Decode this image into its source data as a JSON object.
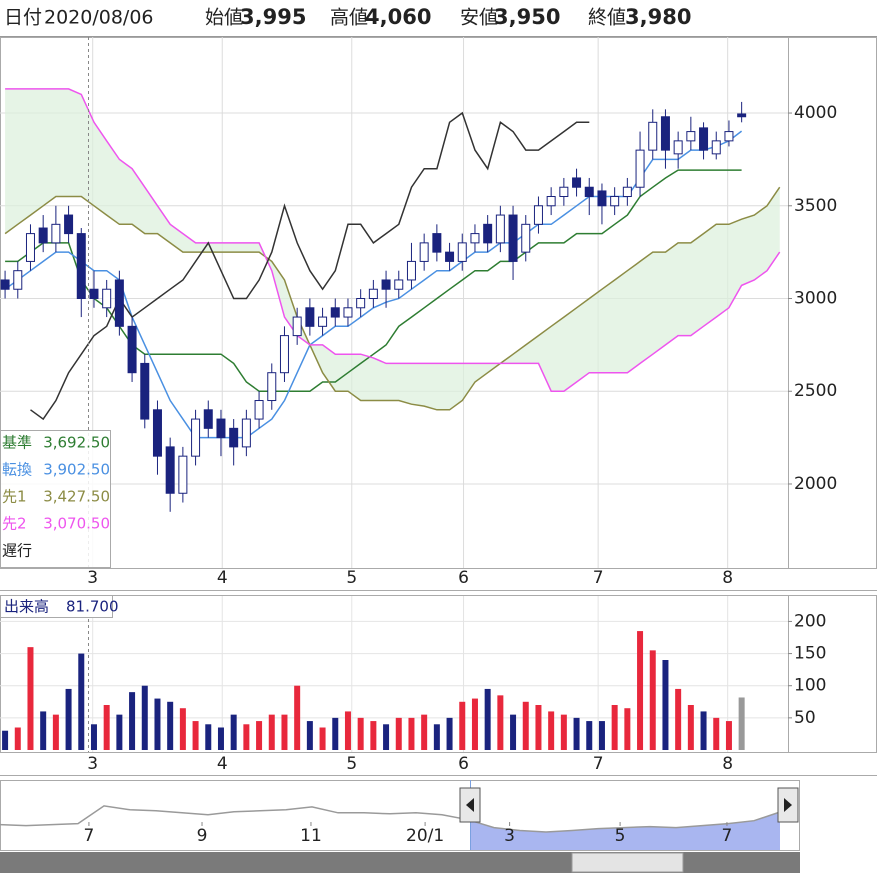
{
  "header": {
    "date_label": "日付",
    "date": "2020/08/06",
    "items": [
      {
        "label": "始値",
        "value": "3,995",
        "color": "#222222"
      },
      {
        "label": "高値",
        "value": "4,060",
        "color": "#e0202a"
      },
      {
        "label": "安値",
        "value": "3,950",
        "color": "#1a7a1a"
      },
      {
        "label": "終値",
        "value": "3,980",
        "color": "#222222"
      }
    ]
  },
  "chart_data": [
    {
      "type": "candlestick",
      "x": [
        0,
        1,
        2,
        3,
        4,
        5,
        6,
        7,
        8,
        9,
        10,
        11,
        12,
        13,
        14,
        15,
        16,
        17,
        18,
        19,
        20,
        21,
        22,
        23,
        24,
        25,
        26,
        27,
        28,
        29,
        30,
        31,
        32,
        33,
        34,
        35,
        36,
        37,
        38,
        39,
        40,
        41,
        42,
        43,
        44,
        45,
        46,
        47,
        48,
        49,
        50,
        51,
        52,
        53,
        54,
        55,
        56,
        57,
        58,
        59,
        60,
        61
      ],
      "open": [
        3100,
        3050,
        3200,
        3380,
        3300,
        3450,
        3350,
        3050,
        2950,
        3100,
        2850,
        2650,
        2400,
        2200,
        1950,
        2150,
        2400,
        2350,
        2300,
        2200,
        2350,
        2450,
        2600,
        2800,
        2950,
        2850,
        2950,
        2900,
        2950,
        3000,
        3100,
        3050,
        3100,
        3200,
        3350,
        3250,
        3200,
        3300,
        3400,
        3300,
        3450,
        3250,
        3400,
        3500,
        3550,
        3650,
        3600,
        3580,
        3500,
        3550,
        3600,
        3800,
        3980,
        3780,
        3850,
        3920,
        3780,
        3850,
        3995,
        null,
        null,
        null
      ],
      "high": [
        3150,
        3200,
        3400,
        3450,
        3500,
        3500,
        3380,
        3150,
        3100,
        3150,
        2900,
        2700,
        2450,
        2250,
        2200,
        2400,
        2450,
        2400,
        2350,
        2400,
        2500,
        2650,
        2850,
        2950,
        3000,
        2950,
        3000,
        3000,
        3050,
        3100,
        3150,
        3150,
        3300,
        3350,
        3400,
        3300,
        3350,
        3400,
        3450,
        3500,
        3500,
        3450,
        3550,
        3600,
        3650,
        3700,
        3650,
        3620,
        3600,
        3650,
        3900,
        4020,
        4020,
        3900,
        3980,
        3950,
        3900,
        3960,
        4060,
        null,
        null,
        null
      ],
      "low": [
        3000,
        3000,
        3150,
        3250,
        3250,
        3300,
        2900,
        2950,
        2900,
        2800,
        2550,
        2300,
        2050,
        1850,
        1900,
        2100,
        2250,
        2150,
        2100,
        2150,
        2300,
        2400,
        2550,
        2750,
        2800,
        2800,
        2850,
        2850,
        2900,
        2950,
        2950,
        3000,
        3050,
        3150,
        3200,
        3150,
        3150,
        3250,
        3250,
        3250,
        3100,
        3200,
        3350,
        3450,
        3500,
        3550,
        3450,
        3400,
        3450,
        3500,
        3550,
        3750,
        3700,
        3700,
        3800,
        3750,
        3750,
        3820,
        3950,
        null,
        null,
        null
      ],
      "close": [
        3050,
        3150,
        3350,
        3300,
        3400,
        3350,
        3000,
        3000,
        3050,
        2850,
        2600,
        2350,
        2150,
        1950,
        2150,
        2350,
        2300,
        2250,
        2200,
        2350,
        2450,
        2600,
        2800,
        2900,
        2850,
        2900,
        2900,
        2950,
        3000,
        3050,
        3050,
        3100,
        3200,
        3300,
        3250,
        3200,
        3300,
        3350,
        3300,
        3450,
        3200,
        3400,
        3500,
        3550,
        3600,
        3600,
        3550,
        3500,
        3550,
        3600,
        3800,
        3950,
        3800,
        3850,
        3900,
        3800,
        3850,
        3900,
        3980,
        null,
        null,
        null
      ],
      "up_color": "#ffffff",
      "down_color": "#1a237e",
      "edge_color": "#1a237e",
      "series": [
        {
          "name": "基準",
          "color": "#2e7d32",
          "value_label": "3,692.50",
          "values": [
            3200,
            3200,
            3250,
            3300,
            3300,
            3300,
            3100,
            3000,
            2950,
            2850,
            2750,
            2700,
            2700,
            2700,
            2700,
            2700,
            2700,
            2700,
            2650,
            2550,
            2500,
            2500,
            2500,
            2500,
            2500,
            2550,
            2550,
            2600,
            2650,
            2700,
            2750,
            2850,
            2900,
            2950,
            3000,
            3050,
            3100,
            3150,
            3150,
            3200,
            3200,
            3250,
            3300,
            3300,
            3300,
            3350,
            3350,
            3350,
            3400,
            3450,
            3550,
            3600,
            3650,
            3692.5,
            3692.5,
            3692.5,
            3692.5,
            3692.5,
            3692.5,
            null,
            null,
            null
          ]
        },
        {
          "name": "転換",
          "color": "#4a90e2",
          "value_label": "3,902.50",
          "values": [
            3050,
            3100,
            3150,
            3200,
            3250,
            3250,
            3200,
            3150,
            3150,
            3100,
            2900,
            2750,
            2600,
            2450,
            2350,
            2250,
            2250,
            2250,
            2250,
            2250,
            2300,
            2350,
            2450,
            2600,
            2750,
            2800,
            2850,
            2850,
            2900,
            2950,
            2980,
            3000,
            3050,
            3100,
            3150,
            3150,
            3200,
            3250,
            3250,
            3300,
            3300,
            3350,
            3400,
            3400,
            3450,
            3500,
            3550,
            3550,
            3550,
            3550,
            3650,
            3750,
            3750,
            3750,
            3800,
            3800,
            3820,
            3850,
            3902.5,
            null,
            null,
            null
          ]
        },
        {
          "name": "先1",
          "color": "#8c8c45",
          "value_label": "3,427.50",
          "values": [
            3350,
            3400,
            3450,
            3500,
            3550,
            3550,
            3550,
            3500,
            3450,
            3400,
            3400,
            3350,
            3350,
            3300,
            3250,
            3250,
            3250,
            3250,
            3250,
            3250,
            3250,
            3200,
            3100,
            2900,
            2750,
            2600,
            2500,
            2500,
            2450,
            2450,
            2450,
            2450,
            2430,
            2420,
            2400,
            2400,
            2450,
            2550,
            2600,
            2650,
            2700,
            2750,
            2800,
            2850,
            2900,
            2950,
            3000,
            3050,
            3100,
            3150,
            3200,
            3250,
            3250,
            3300,
            3300,
            3350,
            3400,
            3400,
            3427.5,
            3450,
            3500,
            3600
          ]
        },
        {
          "name": "先2",
          "color": "#ee55ee",
          "value_label": "3,070.50",
          "values": [
            4130,
            4130,
            4130,
            4130,
            4130,
            4130,
            4100,
            3950,
            3850,
            3750,
            3700,
            3600,
            3500,
            3400,
            3350,
            3300,
            3300,
            3300,
            3300,
            3300,
            3300,
            3150,
            2900,
            2800,
            2750,
            2750,
            2700,
            2700,
            2700,
            2680,
            2650,
            2650,
            2650,
            2650,
            2650,
            2650,
            2650,
            2650,
            2650,
            2650,
            2650,
            2650,
            2650,
            2500,
            2500,
            2550,
            2600,
            2600,
            2600,
            2600,
            2650,
            2700,
            2750,
            2800,
            2800,
            2850,
            2900,
            2950,
            3070.5,
            3100,
            3150,
            3250
          ]
        },
        {
          "name": "遅行",
          "color": "#333333",
          "values": [
            null,
            null,
            2400,
            2350,
            2450,
            2600,
            2700,
            2800,
            2850,
            3000,
            2900,
            2950,
            3000,
            3050,
            3100,
            3200,
            3300,
            3150,
            3000,
            3000,
            3100,
            3250,
            3500,
            3300,
            3150,
            3050,
            3150,
            3400,
            3400,
            3300,
            3350,
            3400,
            3600,
            3700,
            3700,
            3950,
            4000,
            3800,
            3700,
            3950,
            3900,
            3800,
            3800,
            3850,
            3900,
            3950,
            3950,
            null,
            null,
            null,
            null,
            null,
            null,
            null,
            null,
            null,
            null,
            null,
            null,
            null,
            null,
            null
          ]
        }
      ],
      "cloud_color": "#dcefdc",
      "xlim": [
        -0.4,
        61.65
      ],
      "ylim": [
        1547,
        4410
      ],
      "xticks": [
        {
          "value": 6.9,
          "label": "3"
        },
        {
          "value": 17.1,
          "label": "4"
        },
        {
          "value": 27.3,
          "label": "5"
        },
        {
          "value": 36.1,
          "label": "6"
        },
        {
          "value": 46.7,
          "label": "7"
        },
        {
          "value": 56.9,
          "label": "8"
        }
      ],
      "yticks": [
        2000,
        2500,
        3000,
        3500,
        4000
      ],
      "grid": true
    },
    {
      "type": "bar",
      "name": "出来高",
      "value_label": "81.700",
      "values": [
        30,
        35,
        160,
        60,
        55,
        95,
        150,
        40,
        70,
        55,
        90,
        100,
        80,
        75,
        65,
        45,
        40,
        35,
        55,
        40,
        45,
        55,
        55,
        100,
        45,
        35,
        50,
        60,
        50,
        45,
        40,
        50,
        50,
        55,
        40,
        50,
        75,
        80,
        95,
        85,
        55,
        75,
        70,
        60,
        55,
        50,
        45,
        45,
        70,
        65,
        185,
        155,
        140,
        95,
        70,
        60,
        50,
        45,
        81.7,
        null,
        null,
        null
      ],
      "up_color": "#e8283c",
      "down_color": "#1a237e",
      "last_color": "#999999",
      "ylim": [
        0,
        238
      ],
      "yticks": [
        50,
        100,
        150,
        200
      ],
      "grid": true
    },
    {
      "type": "area",
      "color": "#a9b6f0",
      "line_color": "#9a9a9a",
      "x": [
        0,
        1,
        2,
        3,
        4,
        5,
        6,
        7,
        8,
        9,
        10,
        11,
        12,
        13,
        14,
        15,
        16,
        17,
        18,
        19,
        20,
        21,
        22,
        23,
        24,
        25,
        26,
        27,
        28,
        29,
        30
      ],
      "values": [
        2700,
        2600,
        2700,
        2800,
        4600,
        4200,
        4100,
        3900,
        3700,
        4000,
        4100,
        4200,
        4500,
        3900,
        3900,
        3800,
        3900,
        3700,
        3200,
        2400,
        2100,
        1950,
        2100,
        2300,
        2400,
        2500,
        2400,
        2600,
        2800,
        3100,
        3980
      ],
      "xlim": [
        0,
        30
      ],
      "ylim": [
        330,
        7020
      ],
      "xticks": [
        {
          "value": 3.42,
          "label": "7"
        },
        {
          "value": 7.77,
          "label": "9"
        },
        {
          "value": 11.96,
          "label": "11"
        },
        {
          "value": 16.35,
          "label": "20/1"
        },
        {
          "value": 19.6,
          "label": "3"
        },
        {
          "value": 23.85,
          "label": "5"
        },
        {
          "value": 27.96,
          "label": "7"
        }
      ]
    }
  ]
}
